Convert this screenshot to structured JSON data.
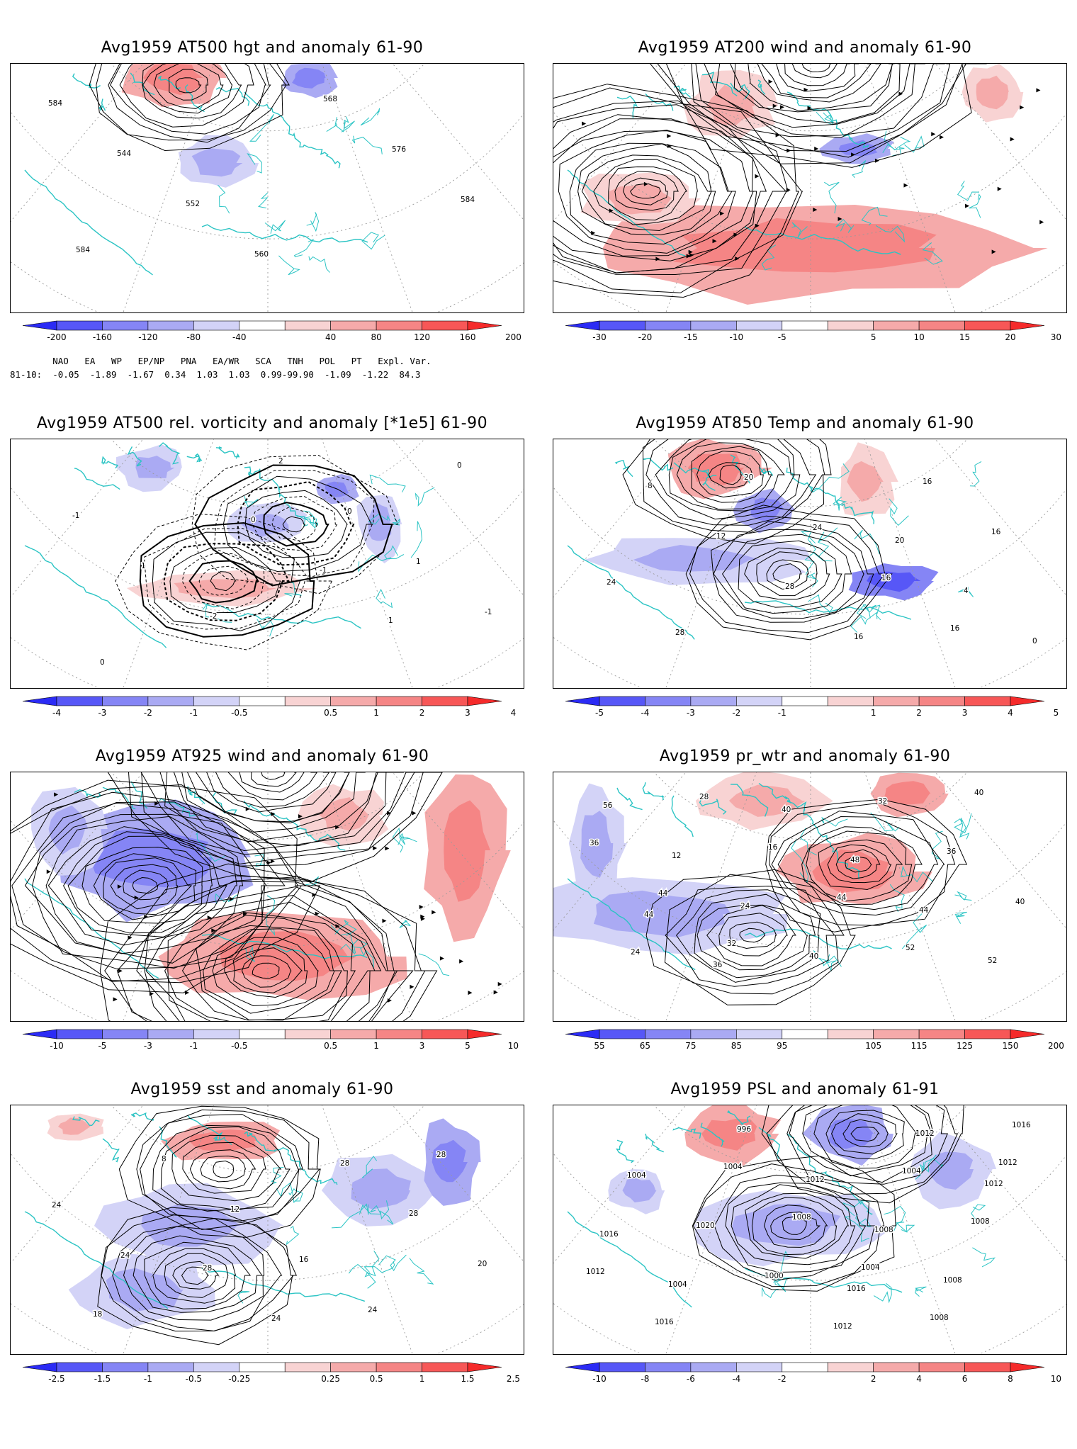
{
  "panels": [
    {
      "id": "hgt500",
      "title": "Avg1959 AT500 hgt and anomaly 61-90",
      "map_kind": "height",
      "contour_labels": [
        "584",
        "544",
        "552",
        "560",
        "568",
        "576",
        "584",
        "584"
      ],
      "colorbar": {
        "labels": [
          "-200",
          "-160",
          "-120",
          "-80",
          "-40",
          "40",
          "80",
          "120",
          "160",
          "200"
        ],
        "colors": [
          "#2b2bf5",
          "#5757f7",
          "#8585f5",
          "#aaaaf3",
          "#d3d3f7",
          "#ffffff",
          "#f8d3d3",
          "#f5aaaa",
          "#f58585",
          "#f75757",
          "#f52b2b"
        ]
      },
      "index_table": {
        "header": [
          "NAO",
          "EA",
          "WP",
          "EP/NP",
          "PNA",
          "EA/WR",
          "SCA",
          "TNH",
          "POL",
          "PT",
          "Expl. Var."
        ],
        "row_label": "81-10:",
        "values": [
          "-0.05",
          "-1.89",
          "-1.67",
          "0.34",
          "1.03",
          "1.03",
          "0.99",
          "-99.90",
          "-1.09",
          "-1.22",
          "84.3"
        ]
      }
    },
    {
      "id": "wind200",
      "title": "Avg1959 AT200 wind and anomaly 61-90",
      "map_kind": "wind200",
      "contour_labels": [],
      "colorbar": {
        "labels": [
          "-30",
          "-20",
          "-15",
          "-10",
          "-5",
          "5",
          "10",
          "15",
          "20",
          "30"
        ],
        "colors": [
          "#2b2bf5",
          "#5757f7",
          "#8585f5",
          "#aaaaf3",
          "#d3d3f7",
          "#ffffff",
          "#f8d3d3",
          "#f5aaaa",
          "#f58585",
          "#f75757",
          "#f52b2b"
        ]
      }
    },
    {
      "id": "vort500",
      "title": "Avg1959 AT500 rel. vorticity and anomaly [*1e5] 61-90",
      "map_kind": "vorticity",
      "contour_labels": [
        "0",
        "-1",
        "1",
        "0",
        "-1",
        "1",
        "-2",
        "2",
        "0",
        "1",
        "-1",
        "0"
      ],
      "colorbar": {
        "labels": [
          "-4",
          "-3",
          "-2",
          "-1",
          "-0.5",
          "0.5",
          "1",
          "2",
          "3",
          "4"
        ],
        "colors": [
          "#2b2bf5",
          "#5757f7",
          "#8585f5",
          "#aaaaf3",
          "#d3d3f7",
          "#ffffff",
          "#f8d3d3",
          "#f5aaaa",
          "#f58585",
          "#f75757",
          "#f52b2b"
        ]
      }
    },
    {
      "id": "temp850",
      "title": "Avg1959 AT850 Temp and anomaly 61-90",
      "map_kind": "temp",
      "contour_labels": [
        "20",
        "4",
        "0",
        "8",
        "12",
        "28",
        "16",
        "16",
        "16",
        "24",
        "28",
        "20",
        "24",
        "16",
        "16"
      ],
      "colorbar": {
        "labels": [
          "-5",
          "-4",
          "-3",
          "-2",
          "-1",
          "1",
          "2",
          "3",
          "4",
          "5"
        ],
        "colors": [
          "#2b2bf5",
          "#5757f7",
          "#8585f5",
          "#aaaaf3",
          "#d3d3f7",
          "#ffffff",
          "#f8d3d3",
          "#f5aaaa",
          "#f58585",
          "#f75757",
          "#f52b2b"
        ]
      }
    },
    {
      "id": "wind925",
      "title": "Avg1959 AT925 wind and anomaly 61-90",
      "map_kind": "wind925",
      "contour_labels": [],
      "colorbar": {
        "labels": [
          "-10",
          "-5",
          "-3",
          "-1",
          "-0.5",
          "0.5",
          "1",
          "3",
          "5",
          "10"
        ],
        "colors": [
          "#2b2bf5",
          "#5757f7",
          "#8585f5",
          "#aaaaf3",
          "#d3d3f7",
          "#ffffff",
          "#f8d3d3",
          "#f5aaaa",
          "#f58585",
          "#f75757",
          "#f52b2b"
        ]
      }
    },
    {
      "id": "prwtr",
      "title": "Avg1959 pr_wtr and anomaly 61-90",
      "map_kind": "prwtr",
      "contour_labels": [
        "44",
        "36",
        "40",
        "48",
        "44",
        "52",
        "56",
        "12",
        "24",
        "40",
        "32",
        "36",
        "40",
        "24",
        "28",
        "16",
        "44",
        "52",
        "40",
        "36",
        "44",
        "32"
      ],
      "colorbar": {
        "labels": [
          "55",
          "65",
          "75",
          "85",
          "95",
          "105",
          "115",
          "125",
          "150",
          "200"
        ],
        "colors": [
          "#2b2bf5",
          "#5757f7",
          "#8585f5",
          "#aaaaf3",
          "#d3d3f7",
          "#ffffff",
          "#f8d3d3",
          "#f5aaaa",
          "#f58585",
          "#f75757",
          "#f52b2b"
        ]
      }
    },
    {
      "id": "sst",
      "title": "Avg1959 sst and anomaly 61-90",
      "map_kind": "sst",
      "contour_labels": [
        "28",
        "24",
        "28",
        "28",
        "20",
        "18",
        "8",
        "12",
        "16",
        "24",
        "28",
        "24",
        "24"
      ],
      "colorbar": {
        "labels": [
          "-2.5",
          "-1.5",
          "-1",
          "-0.5",
          "-0.25",
          "0.25",
          "0.5",
          "1",
          "1.5",
          "2.5"
        ],
        "colors": [
          "#2b2bf5",
          "#5757f7",
          "#8585f5",
          "#aaaaf3",
          "#d3d3f7",
          "#ffffff",
          "#f8d3d3",
          "#f5aaaa",
          "#f58585",
          "#f75757",
          "#f52b2b"
        ]
      }
    },
    {
      "id": "psl",
      "title": "Avg1959 PSL and anomaly 61-91",
      "map_kind": "psl",
      "contour_labels": [
        "1016",
        "1012",
        "1012",
        "1016",
        "1004",
        "996",
        "1012",
        "1008",
        "1008",
        "1016",
        "1004",
        "1020",
        "1000",
        "1012",
        "1004",
        "1008",
        "1012",
        "1016",
        "1004",
        "1008",
        "1004",
        "1008",
        "1012"
      ],
      "colorbar": {
        "labels": [
          "-10",
          "-8",
          "-6",
          "-4",
          "-2",
          "2",
          "4",
          "6",
          "8",
          "10"
        ],
        "colors": [
          "#2b2bf5",
          "#5757f7",
          "#8585f5",
          "#aaaaf3",
          "#d3d3f7",
          "#ffffff",
          "#f8d3d3",
          "#f5aaaa",
          "#f58585",
          "#f75757",
          "#f52b2b"
        ]
      }
    }
  ],
  "style": {
    "coastline_color": "#2bc4c4",
    "contour_color": "#000000",
    "grid_color": "#9a9a9a"
  }
}
